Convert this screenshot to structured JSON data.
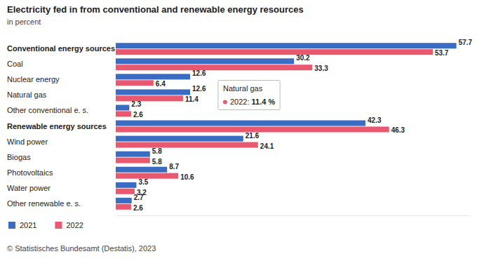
{
  "chart_data": {
    "type": "bar",
    "orientation": "horizontal",
    "title": "Electricity fed in from conventional and renewable energy resources",
    "subtitle": "in percent",
    "categories": [
      "Conventional energy sources",
      "Coal",
      "Nuclear energy",
      "Natural gas",
      "Other conventional e. s.",
      "Renewable energy sources",
      "Wind power",
      "Biogas",
      "Photovoltaics",
      "Water power",
      "Other renewable e. s."
    ],
    "series": [
      {
        "name": "2021",
        "color": "#3a6cc2",
        "values": [
          57.7,
          30.2,
          12.6,
          12.6,
          2.3,
          42.3,
          21.6,
          5.8,
          8.7,
          3.5,
          2.7
        ]
      },
      {
        "name": "2022",
        "color": "#ea5870",
        "values": [
          53.7,
          33.3,
          6.4,
          11.4,
          2.6,
          46.3,
          24.1,
          5.8,
          10.6,
          3.2,
          2.6
        ]
      }
    ],
    "xlim": [
      0,
      60
    ],
    "xticks": [],
    "tick_labels": "y",
    "grid": false,
    "data_labels": true,
    "legend": "bottom-left",
    "annotations": [
      {
        "title": "Natural gas",
        "text": "2022: 11.4 %"
      }
    ],
    "source": "© Statistisches Bundesamt (Destatis), 2023"
  }
}
